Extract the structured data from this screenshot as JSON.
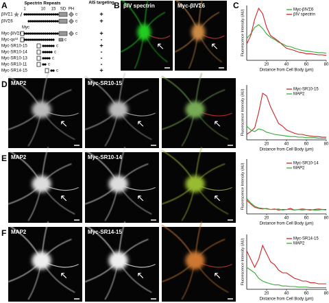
{
  "panel_a": {
    "letter": "A",
    "header": "Spectrin Repeats",
    "repeat_numbers": [
      "1",
      "10",
      "15"
    ],
    "domains": [
      "SD",
      "PH"
    ],
    "targeting_header": "AIS targeting",
    "tag_label": "Myc",
    "tail_label": "c",
    "constructs": [
      {
        "name": "βIVΣ1",
        "targeting": "+"
      },
      {
        "name": "βIVΣ6",
        "targeting": "+"
      },
      {
        "name": "Myc-βIVΣ6",
        "targeting": "+"
      },
      {
        "name": "Myc-qv³ᴶ",
        "targeting": "-"
      },
      {
        "name": "Myc-SR10-15",
        "targeting": "+"
      },
      {
        "name": "Myc-SR10-14",
        "targeting": "-"
      },
      {
        "name": "Myc-SR10-13",
        "targeting": "-"
      },
      {
        "name": "Myc-SR10-11",
        "targeting": "-"
      },
      {
        "name": "Myc-SR14-15",
        "targeting": "+"
      }
    ]
  },
  "panels": [
    {
      "letter": "B",
      "image_labels": [
        "βIV spectrin",
        "Myc-βIVΣ6"
      ]
    },
    {
      "letter": "C"
    },
    {
      "letter": "D",
      "image_labels": [
        "MAP2",
        "Myc-SR10-15"
      ]
    },
    {
      "letter": "E",
      "image_labels": [
        "MAP2",
        "Myc-SR10-14"
      ]
    },
    {
      "letter": "F",
      "image_labels": [
        "MAP2",
        "Myc-SR14-15"
      ]
    }
  ],
  "chart_data": [
    {
      "type": "line",
      "ylabel": "Fluorescence Intensity (AU)",
      "xlabel": "Distance from Cell Body (μm)",
      "xlim": [
        0,
        80
      ],
      "ylim": [
        0,
        100
      ],
      "xticks": [
        20,
        40,
        60,
        80
      ],
      "x": [
        0,
        4,
        8,
        12,
        16,
        20,
        24,
        28,
        32,
        36,
        40,
        44,
        48,
        52,
        56,
        60,
        64,
        68,
        72,
        76,
        80
      ],
      "series": [
        {
          "name": "Myc-βIVΣ6",
          "color": "#33aa33",
          "values": [
            40,
            48,
            60,
            65,
            58,
            48,
            42,
            38,
            33,
            30,
            26,
            25,
            22,
            20,
            18,
            17,
            16,
            15,
            14,
            14,
            13
          ]
        },
        {
          "name": "βIV spectrin",
          "color": "#cc2222",
          "values": [
            30,
            45,
            75,
            95,
            85,
            60,
            45,
            40,
            35,
            28,
            22,
            20,
            18,
            15,
            14,
            12,
            12,
            11,
            10,
            10,
            9
          ]
        }
      ]
    },
    {
      "type": "line",
      "ylabel": "Fluorescence Intensity (AU)",
      "xlabel": "Distance from Cell Body (μm)",
      "xlim": [
        0,
        80
      ],
      "ylim": [
        0,
        100
      ],
      "xticks": [
        20,
        40,
        60,
        80
      ],
      "x": [
        0,
        4,
        8,
        12,
        16,
        20,
        24,
        28,
        32,
        36,
        40,
        44,
        48,
        52,
        56,
        60,
        64,
        68,
        72,
        76,
        80
      ],
      "series": [
        {
          "name": "Myc-SR10-15",
          "color": "#cc2222",
          "values": [
            10,
            15,
            22,
            50,
            85,
            80,
            60,
            45,
            30,
            25,
            18,
            15,
            12,
            10,
            10,
            8,
            7,
            6,
            6,
            5,
            5
          ]
        },
        {
          "name": "MAP2",
          "color": "#33aa33",
          "values": [
            25,
            18,
            15,
            20,
            18,
            14,
            12,
            10,
            9,
            8,
            7,
            6,
            6,
            5,
            5,
            4,
            4,
            4,
            3,
            3,
            3
          ]
        }
      ]
    },
    {
      "type": "line",
      "ylabel": "Fluorescence Intensity (AU)",
      "xlabel": "Distance from Cell Body (μm)",
      "xlim": [
        0,
        80
      ],
      "ylim": [
        0,
        100
      ],
      "xticks": [
        20,
        40,
        60,
        80
      ],
      "x": [
        0,
        4,
        8,
        12,
        16,
        20,
        24,
        28,
        32,
        36,
        40,
        44,
        48,
        52,
        56,
        60,
        64,
        68,
        72,
        76,
        80
      ],
      "series": [
        {
          "name": "Myc-SR10-14",
          "color": "#cc2222",
          "values": [
            25,
            18,
            12,
            10,
            9,
            10,
            8,
            9,
            7,
            8,
            8,
            10,
            7,
            8,
            9,
            8,
            7,
            8,
            9,
            8,
            8
          ]
        },
        {
          "name": "MAP2",
          "color": "#33aa33",
          "values": [
            28,
            20,
            14,
            11,
            10,
            9,
            8,
            8,
            9,
            7,
            8,
            8,
            7,
            8,
            7,
            8,
            8,
            7,
            7,
            8,
            7
          ]
        }
      ]
    },
    {
      "type": "line",
      "ylabel": "Fluorescence Intensity (AU)",
      "xlabel": "Distance from Cell Body (μm)",
      "xlim": [
        0,
        80
      ],
      "ylim": [
        0,
        100
      ],
      "xticks": [
        20,
        40,
        60,
        80
      ],
      "x": [
        0,
        4,
        8,
        12,
        16,
        20,
        24,
        28,
        32,
        36,
        40,
        44,
        48,
        52,
        56,
        60,
        64,
        68,
        72,
        76,
        80
      ],
      "series": [
        {
          "name": "Myc-SR14-15",
          "color": "#cc2222",
          "values": [
            70,
            55,
            40,
            55,
            80,
            65,
            50,
            45,
            35,
            30,
            30,
            25,
            20,
            18,
            15,
            15,
            12,
            12,
            10,
            10,
            10
          ]
        },
        {
          "name": "MAP2",
          "color": "#33aa33",
          "values": [
            40,
            35,
            30,
            20,
            15,
            12,
            10,
            8,
            8,
            6,
            6,
            5,
            5,
            4,
            4,
            4,
            3,
            3,
            3,
            3,
            3
          ]
        }
      ]
    }
  ]
}
